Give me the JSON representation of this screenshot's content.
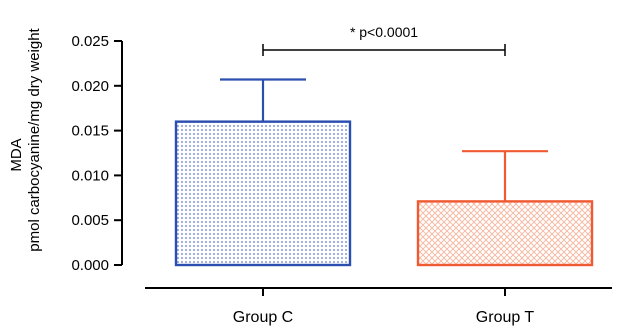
{
  "chart_data": {
    "type": "bar",
    "categories": [
      "Group C",
      "Group T"
    ],
    "values": [
      0.016,
      0.0071
    ],
    "error_upper": [
      0.0207,
      0.0127
    ],
    "ylim": [
      0,
      0.025
    ],
    "yticks": [
      "0.000",
      "0.005",
      "0.010",
      "0.015",
      "0.020",
      "0.025"
    ],
    "ylabel_line1": "MDA",
    "ylabel_line2": "pmol carbocyanine/mg dry weight",
    "xlabel": "",
    "annotation": "* p<0.0001",
    "colors": {
      "group_c_edge": "#2b4fb0",
      "group_c_dots": "#9aa8d8",
      "group_t_edge": "#f05a32",
      "group_t_pattern": "#f6b49c"
    }
  }
}
